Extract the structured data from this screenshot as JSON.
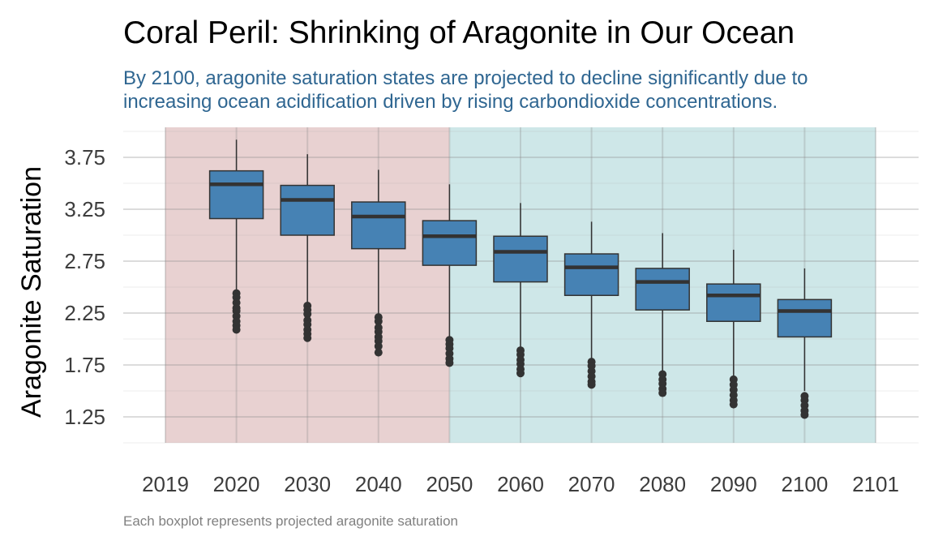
{
  "chart_data": {
    "type": "boxplot",
    "title": "Coral Peril: Shrinking of Aragonite in Our Ocean",
    "subtitle_lines": [
      "By 2100, aragonite saturation states are projected to decline significantly due to",
      "increasing ocean acidification driven by rising carbondioxide concentrations."
    ],
    "caption": "Each boxplot represents projected aragonite saturation",
    "xlabel": "",
    "ylabel": "Aragonite Saturation",
    "xlim": [
      2019,
      2101
    ],
    "ylim": [
      1.0,
      4.05
    ],
    "x_ticks": [
      "2019",
      "2020",
      "2030",
      "2040",
      "2050",
      "2060",
      "2070",
      "2080",
      "2090",
      "2100",
      "2101"
    ],
    "y_ticks": [
      1.25,
      1.75,
      2.25,
      2.75,
      3.25,
      3.75
    ],
    "y_tick_labels": [
      "1.25",
      "1.75",
      "2.25",
      "2.75",
      "3.25",
      "3.75"
    ],
    "grid": true,
    "shaded_periods": [
      {
        "from": 2019,
        "to": 2050,
        "color": "#e8d1d1"
      },
      {
        "from": 2050,
        "to": 2101,
        "color": "#cee7e8"
      }
    ],
    "box_color": "#4682b4",
    "boxes": [
      {
        "x": "2020",
        "whisker_low": 2.46,
        "q1": 3.16,
        "median": 3.49,
        "q3": 3.62,
        "whisker_high": 3.92,
        "outliers": [
          2.44,
          2.4,
          2.35,
          2.3,
          2.27,
          2.22,
          2.17,
          2.13,
          2.09
        ]
      },
      {
        "x": "2030",
        "whisker_low": 2.34,
        "q1": 3.0,
        "median": 3.34,
        "q3": 3.48,
        "whisker_high": 3.78,
        "outliers": [
          2.32,
          2.28,
          2.24,
          2.18,
          2.14,
          2.09,
          2.05,
          2.01
        ]
      },
      {
        "x": "2040",
        "whisker_low": 2.23,
        "q1": 2.87,
        "median": 3.18,
        "q3": 3.32,
        "whisker_high": 3.63,
        "outliers": [
          2.21,
          2.17,
          2.11,
          2.07,
          2.02,
          1.98,
          1.93,
          1.87
        ]
      },
      {
        "x": "2050",
        "whisker_low": 2.0,
        "q1": 2.71,
        "median": 2.99,
        "q3": 3.14,
        "whisker_high": 3.49,
        "outliers": [
          1.99,
          1.95,
          1.91,
          1.86,
          1.81,
          1.77
        ]
      },
      {
        "x": "2060",
        "whisker_low": 1.9,
        "q1": 2.55,
        "median": 2.84,
        "q3": 2.99,
        "whisker_high": 3.31,
        "outliers": [
          1.89,
          1.85,
          1.8,
          1.76,
          1.71,
          1.67
        ]
      },
      {
        "x": "2070",
        "whisker_low": 1.8,
        "q1": 2.42,
        "median": 2.69,
        "q3": 2.82,
        "whisker_high": 3.13,
        "outliers": [
          1.78,
          1.74,
          1.69,
          1.64,
          1.59,
          1.56
        ]
      },
      {
        "x": "2080",
        "whisker_low": 1.67,
        "q1": 2.28,
        "median": 2.55,
        "q3": 2.68,
        "whisker_high": 3.02,
        "outliers": [
          1.66,
          1.61,
          1.57,
          1.52,
          1.48
        ]
      },
      {
        "x": "2090",
        "whisker_low": 1.62,
        "q1": 2.17,
        "median": 2.42,
        "q3": 2.53,
        "whisker_high": 2.86,
        "outliers": [
          1.61,
          1.56,
          1.51,
          1.46,
          1.41,
          1.37
        ]
      },
      {
        "x": "2100",
        "whisker_low": 1.5,
        "q1": 2.02,
        "median": 2.27,
        "q3": 2.38,
        "whisker_high": 2.68,
        "outliers": [
          1.45,
          1.41,
          1.36,
          1.31,
          1.27
        ]
      }
    ]
  }
}
